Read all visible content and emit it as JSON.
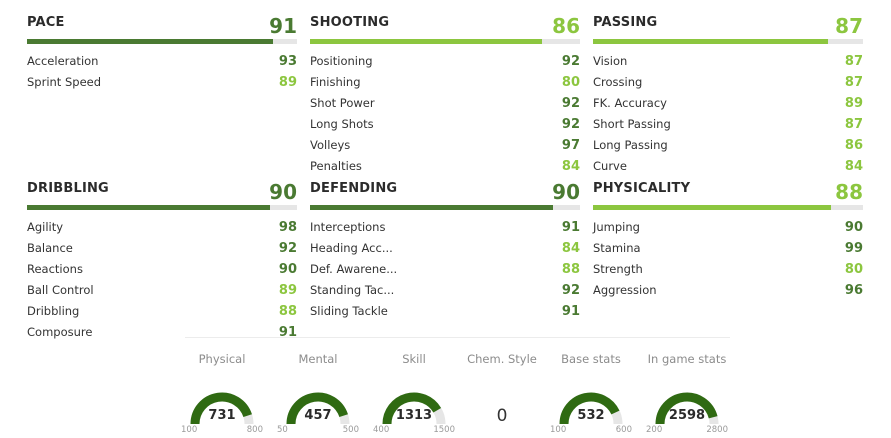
{
  "colors": {
    "dark_green": "#4a7a32",
    "light_green": "#8cc63f",
    "track": "#e6e6e6"
  },
  "categories": [
    {
      "name": "PACE",
      "value": "91",
      "color": "dark",
      "attributes": [
        {
          "label": "Acceleration",
          "value": "93",
          "color": "dark"
        },
        {
          "label": "Sprint Speed",
          "value": "89",
          "color": "light"
        }
      ]
    },
    {
      "name": "SHOOTING",
      "value": "86",
      "color": "light",
      "attributes": [
        {
          "label": "Positioning",
          "value": "92",
          "color": "dark"
        },
        {
          "label": "Finishing",
          "value": "80",
          "color": "light"
        },
        {
          "label": "Shot Power",
          "value": "92",
          "color": "dark"
        },
        {
          "label": "Long Shots",
          "value": "92",
          "color": "dark"
        },
        {
          "label": "Volleys",
          "value": "97",
          "color": "dark"
        },
        {
          "label": "Penalties",
          "value": "84",
          "color": "light"
        }
      ]
    },
    {
      "name": "PASSING",
      "value": "87",
      "color": "light",
      "attributes": [
        {
          "label": "Vision",
          "value": "87",
          "color": "light"
        },
        {
          "label": "Crossing",
          "value": "87",
          "color": "light"
        },
        {
          "label": "FK. Accuracy",
          "value": "89",
          "color": "light"
        },
        {
          "label": "Short Passing",
          "value": "87",
          "color": "light"
        },
        {
          "label": "Long Passing",
          "value": "86",
          "color": "light"
        },
        {
          "label": "Curve",
          "value": "84",
          "color": "light"
        }
      ]
    },
    {
      "name": "DRIBBLING",
      "value": "90",
      "color": "dark",
      "attributes": [
        {
          "label": "Agility",
          "value": "98",
          "color": "dark"
        },
        {
          "label": "Balance",
          "value": "92",
          "color": "dark"
        },
        {
          "label": "Reactions",
          "value": "90",
          "color": "dark"
        },
        {
          "label": "Ball Control",
          "value": "89",
          "color": "light"
        },
        {
          "label": "Dribbling",
          "value": "88",
          "color": "light"
        },
        {
          "label": "Composure",
          "value": "91",
          "color": "dark"
        }
      ]
    },
    {
      "name": "DEFENDING",
      "value": "90",
      "color": "dark",
      "attributes": [
        {
          "label": "Interceptions",
          "value": "91",
          "color": "dark"
        },
        {
          "label": "Heading Acc...",
          "value": "84",
          "color": "light"
        },
        {
          "label": "Def. Awarene...",
          "value": "88",
          "color": "light"
        },
        {
          "label": "Standing Tac...",
          "value": "92",
          "color": "dark"
        },
        {
          "label": "Sliding Tackle",
          "value": "91",
          "color": "dark"
        }
      ]
    },
    {
      "name": "PHYSICALITY",
      "value": "88",
      "color": "light",
      "attributes": [
        {
          "label": "Jumping",
          "value": "90",
          "color": "dark"
        },
        {
          "label": "Stamina",
          "value": "99",
          "color": "dark"
        },
        {
          "label": "Strength",
          "value": "80",
          "color": "light"
        },
        {
          "label": "Aggression",
          "value": "96",
          "color": "dark"
        }
      ]
    }
  ],
  "summary": [
    {
      "label": "Physical",
      "value": "731",
      "min": "100",
      "max": "800",
      "fill": 0.9
    },
    {
      "label": "Mental",
      "value": "457",
      "min": "50",
      "max": "500",
      "fill": 0.9
    },
    {
      "label": "Skill",
      "value": "1313",
      "min": "400",
      "max": "1500",
      "fill": 0.83
    },
    {
      "label": "Chem. Style",
      "value": "0"
    },
    {
      "label": "Base stats",
      "value": "532",
      "min": "100",
      "max": "600",
      "fill": 0.86
    },
    {
      "label": "In game stats",
      "value": "2598",
      "min": "200",
      "max": "2800",
      "fill": 0.92
    }
  ]
}
